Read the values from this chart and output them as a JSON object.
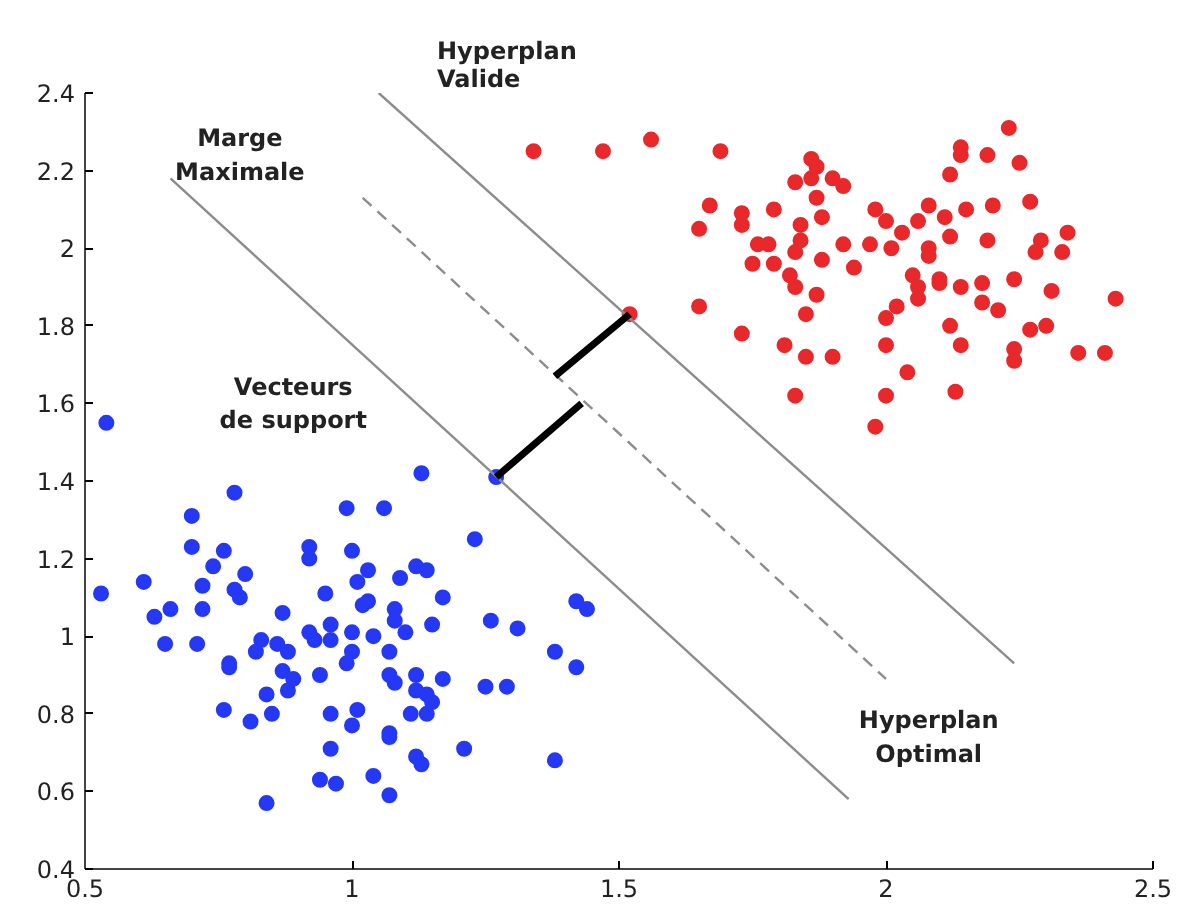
{
  "chart_data": {
    "type": "scatter",
    "xlim": [
      0.5,
      2.5
    ],
    "ylim": [
      0.4,
      2.4
    ],
    "xticks": [
      0.5,
      1,
      1.5,
      2,
      2.5
    ],
    "yticks": [
      0.4,
      0.6,
      0.8,
      1,
      1.2,
      1.4,
      1.6,
      1.8,
      2,
      2.2,
      2.4
    ],
    "grid": false,
    "annotations": [
      "Hyperplan\nValide",
      "Marge\nMaximale",
      "Vecteurs\nde support",
      "Hyperplan\nOptimal"
    ],
    "series": [
      {
        "marker": "circle",
        "color": "#2438f5",
        "x": [
          0.54,
          1.13,
          1.27,
          0.78,
          0.99,
          1.06,
          0.7,
          1.23,
          0.7,
          0.76,
          0.92,
          0.92,
          1.0,
          0.74,
          0.8,
          1.03,
          1.12,
          1.09,
          1.14,
          0.61,
          0.72,
          1.01,
          0.53,
          0.78,
          0.79,
          0.95,
          1.17,
          1.02,
          1.03,
          1.08,
          0.66,
          0.63,
          0.72,
          0.87,
          1.42,
          1.44,
          1.26,
          1.31,
          1.15,
          1.08,
          1.1,
          0.96,
          1.0,
          1.04,
          0.92,
          0.93,
          0.96,
          0.65,
          0.71,
          0.83,
          0.82,
          0.86,
          0.88,
          1.0,
          1.07,
          1.38,
          0.99,
          0.77,
          0.77,
          0.87,
          0.89,
          0.94,
          1.42,
          1.07,
          1.08,
          1.12,
          1.17,
          1.25,
          1.29,
          0.88,
          1.12,
          1.14,
          1.15,
          0.84,
          0.76,
          0.85,
          0.81,
          0.96,
          1.01,
          1.11,
          1.14,
          1.0,
          1.07,
          1.07,
          0.96,
          1.21,
          1.12,
          1.13,
          1.38,
          0.94,
          0.97,
          1.04,
          1.07,
          0.84
        ],
        "values": [
          1.55,
          1.42,
          1.41,
          1.37,
          1.33,
          1.33,
          1.31,
          1.25,
          1.23,
          1.22,
          1.23,
          1.2,
          1.22,
          1.18,
          1.16,
          1.17,
          1.18,
          1.15,
          1.17,
          1.14,
          1.13,
          1.14,
          1.11,
          1.12,
          1.1,
          1.11,
          1.1,
          1.08,
          1.09,
          1.07,
          1.07,
          1.05,
          1.07,
          1.06,
          1.09,
          1.07,
          1.04,
          1.02,
          1.03,
          1.04,
          1.01,
          1.03,
          1.01,
          1.0,
          1.01,
          0.99,
          0.99,
          0.98,
          0.98,
          0.99,
          0.96,
          0.98,
          0.96,
          0.96,
          0.96,
          0.96,
          0.93,
          0.93,
          0.92,
          0.91,
          0.89,
          0.9,
          0.92,
          0.9,
          0.88,
          0.9,
          0.89,
          0.87,
          0.87,
          0.86,
          0.86,
          0.85,
          0.83,
          0.85,
          0.81,
          0.8,
          0.78,
          0.8,
          0.81,
          0.8,
          0.8,
          0.77,
          0.75,
          0.74,
          0.71,
          0.71,
          0.69,
          0.67,
          0.68,
          0.63,
          0.62,
          0.64,
          0.59,
          0.57
        ]
      },
      {
        "marker": "circle",
        "color": "#e8282a",
        "x": [
          1.34,
          1.47,
          1.56,
          1.69,
          2.23,
          1.86,
          1.87,
          1.86,
          1.83,
          1.9,
          1.92,
          2.14,
          2.14,
          2.19,
          2.25,
          2.12,
          1.87,
          1.67,
          1.79,
          1.73,
          1.73,
          1.65,
          1.88,
          1.84,
          1.98,
          2.0,
          2.03,
          2.06,
          2.08,
          2.11,
          2.15,
          2.2,
          2.27,
          2.34,
          2.29,
          2.28,
          2.33,
          2.19,
          2.12,
          2.08,
          2.08,
          1.76,
          1.78,
          1.84,
          1.83,
          1.92,
          1.97,
          2.01,
          1.75,
          1.79,
          1.88,
          1.94,
          1.82,
          1.83,
          1.87,
          2.05,
          2.06,
          2.06,
          2.1,
          2.1,
          2.14,
          2.18,
          2.24,
          2.31,
          2.43,
          1.52,
          1.65,
          1.85,
          2.02,
          2.0,
          2.18,
          2.21,
          2.12,
          2.27,
          2.3,
          1.73,
          1.81,
          1.85,
          1.9,
          2.0,
          2.14,
          2.24,
          2.24,
          2.36,
          2.41,
          2.04,
          1.83,
          2.0,
          2.13,
          1.98
        ],
        "values": [
          2.25,
          2.25,
          2.28,
          2.25,
          2.31,
          2.23,
          2.21,
          2.18,
          2.17,
          2.18,
          2.16,
          2.26,
          2.24,
          2.24,
          2.22,
          2.19,
          2.13,
          2.11,
          2.1,
          2.09,
          2.06,
          2.05,
          2.08,
          2.06,
          2.1,
          2.07,
          2.04,
          2.07,
          2.11,
          2.08,
          2.1,
          2.11,
          2.12,
          2.04,
          2.02,
          1.99,
          1.99,
          2.02,
          2.03,
          2.0,
          1.98,
          2.01,
          2.01,
          2.02,
          1.99,
          2.01,
          2.01,
          2.0,
          1.96,
          1.96,
          1.97,
          1.95,
          1.93,
          1.9,
          1.88,
          1.93,
          1.9,
          1.87,
          1.92,
          1.91,
          1.9,
          1.91,
          1.92,
          1.89,
          1.87,
          1.83,
          1.85,
          1.83,
          1.85,
          1.82,
          1.86,
          1.84,
          1.8,
          1.79,
          1.8,
          1.78,
          1.75,
          1.72,
          1.72,
          1.75,
          1.75,
          1.74,
          1.71,
          1.73,
          1.73,
          1.68,
          1.62,
          1.62,
          1.63,
          1.54
        ]
      },
      {
        "type": "line",
        "color": "#8c8c8c",
        "line_style": "solid",
        "x": [
          1.05,
          2.24
        ],
        "values": [
          2.4,
          0.93
        ]
      },
      {
        "type": "line",
        "color": "#8c8c8c",
        "line_style": "solid",
        "x": [
          0.66,
          1.93
        ],
        "values": [
          2.18,
          0.58
        ]
      },
      {
        "type": "line",
        "color": "#8c8c8c",
        "line_style": "dashed",
        "x": [
          1.02,
          2.0
        ],
        "values": [
          2.13,
          0.89
        ]
      },
      {
        "type": "line",
        "color": "#000000",
        "line_style": "solid",
        "x": [
          1.52,
          1.38
        ],
        "values": [
          1.83,
          1.67
        ]
      },
      {
        "type": "line",
        "color": "#000000",
        "line_style": "solid",
        "x": [
          1.43,
          1.27
        ],
        "values": [
          1.6,
          1.41
        ]
      }
    ]
  }
}
